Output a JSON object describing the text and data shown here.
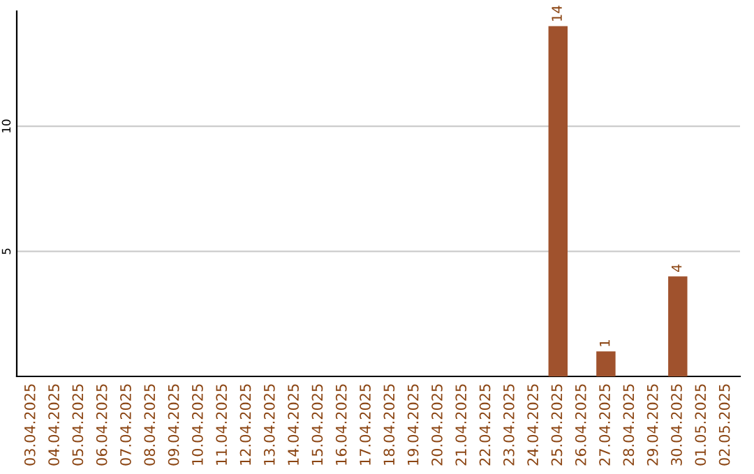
{
  "chart_data": {
    "type": "bar",
    "categories": [
      "03.04.2025",
      "04.04.2025",
      "05.04.2025",
      "06.04.2025",
      "07.04.2025",
      "08.04.2025",
      "09.04.2025",
      "10.04.2025",
      "11.04.2025",
      "12.04.2025",
      "13.04.2025",
      "14.04.2025",
      "15.04.2025",
      "16.04.2025",
      "17.04.2025",
      "18.04.2025",
      "19.04.2025",
      "20.04.2025",
      "21.04.2025",
      "22.04.2025",
      "23.04.2025",
      "24.04.2025",
      "25.04.2025",
      "26.04.2025",
      "27.04.2025",
      "28.04.2025",
      "29.04.2025",
      "30.04.2025",
      "01.05.2025",
      "02.05.2025"
    ],
    "values": [
      0,
      0,
      0,
      0,
      0,
      0,
      0,
      0,
      0,
      0,
      0,
      0,
      0,
      0,
      0,
      0,
      0,
      0,
      0,
      0,
      0,
      0,
      14,
      0,
      1,
      0,
      0,
      4,
      0,
      0
    ],
    "value_labels": [
      null,
      null,
      null,
      null,
      null,
      null,
      null,
      null,
      null,
      null,
      null,
      null,
      null,
      null,
      null,
      null,
      null,
      null,
      null,
      null,
      null,
      null,
      "14",
      null,
      "1",
      null,
      null,
      "4",
      null,
      null
    ],
    "color": "#a0522d",
    "ylim": [
      0,
      14.6
    ],
    "yticks": [
      5,
      10
    ],
    "grid": "y"
  }
}
